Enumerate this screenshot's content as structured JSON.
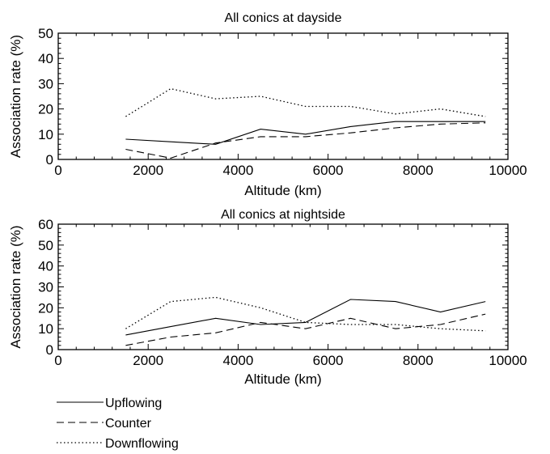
{
  "chart_data": [
    {
      "type": "line",
      "title": "All conics at dayside",
      "xlabel": "Altitude (km)",
      "ylabel": "Association rate (%)",
      "xlim": [
        0,
        10000
      ],
      "ylim": [
        0,
        50
      ],
      "x_ticks": [
        "0",
        "2000",
        "4000",
        "6000",
        "8000",
        "10000"
      ],
      "y_ticks": [
        "0",
        "10",
        "20",
        "30",
        "40",
        "50"
      ],
      "grid": false,
      "x": [
        1500,
        2500,
        3500,
        4500,
        5500,
        6500,
        7500,
        8500,
        9500
      ],
      "series": [
        {
          "name": "Upflowing",
          "style": "solid",
          "values": [
            8,
            7,
            6,
            12,
            10,
            13,
            15,
            15,
            15
          ]
        },
        {
          "name": "Counter",
          "style": "dashed",
          "values": [
            4,
            0.5,
            6.5,
            9,
            9,
            10.5,
            12.5,
            14,
            14.5
          ]
        },
        {
          "name": "Downflowing",
          "style": "dotted",
          "values": [
            17,
            28,
            24,
            25,
            21,
            21,
            18,
            20,
            17
          ]
        }
      ]
    },
    {
      "type": "line",
      "title": "All conics at nightside",
      "xlabel": "Altitude (km)",
      "ylabel": "Association rate (%)",
      "xlim": [
        0,
        10000
      ],
      "ylim": [
        0,
        60
      ],
      "x_ticks": [
        "0",
        "2000",
        "4000",
        "6000",
        "8000",
        "10000"
      ],
      "y_ticks": [
        "0",
        "10",
        "20",
        "30",
        "40",
        "50",
        "60"
      ],
      "grid": false,
      "x": [
        1500,
        2500,
        3500,
        4500,
        5500,
        6500,
        7500,
        8500,
        9500
      ],
      "series": [
        {
          "name": "Upflowing",
          "style": "solid",
          "values": [
            7,
            11,
            15,
            12,
            13,
            24,
            23,
            18,
            23
          ]
        },
        {
          "name": "Counter",
          "style": "dashed",
          "values": [
            2,
            6,
            8,
            13,
            10,
            15,
            10,
            12,
            17
          ]
        },
        {
          "name": "Downflowing",
          "style": "dotted",
          "values": [
            10,
            23,
            25,
            20,
            13,
            12,
            12,
            10,
            9
          ]
        }
      ]
    }
  ],
  "legend": [
    {
      "label": "Upflowing",
      "style": "solid"
    },
    {
      "label": "Counter",
      "style": "dashed"
    },
    {
      "label": "Downflowing",
      "style": "dotted"
    }
  ]
}
